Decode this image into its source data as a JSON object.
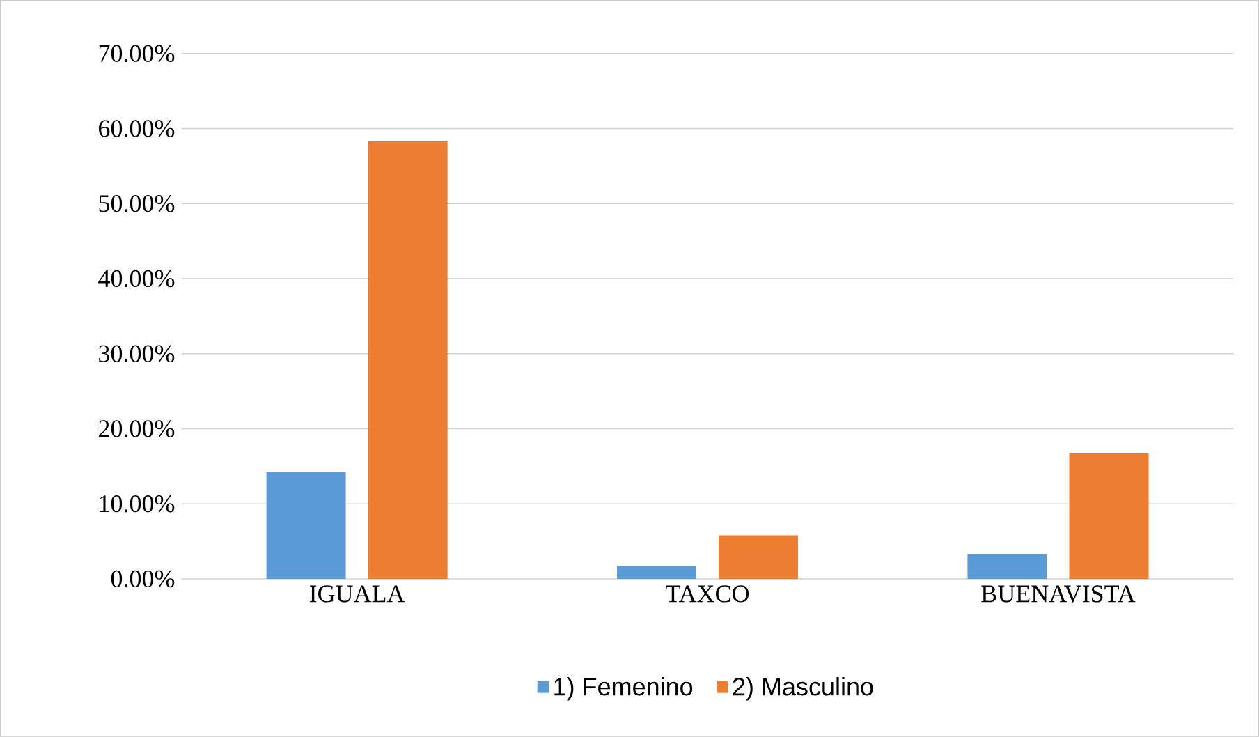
{
  "chart_data": {
    "type": "bar",
    "categories": [
      "IGUALA",
      "TAXCO",
      "BUENAVISTA"
    ],
    "series": [
      {
        "name": "1) Femenino",
        "color": "#5b9bd5",
        "values": [
          14.2,
          1.7,
          3.3
        ]
      },
      {
        "name": "2) Masculino",
        "color": "#ed7d31",
        "values": [
          58.3,
          5.8,
          16.7
        ]
      }
    ],
    "ylim": [
      0,
      70
    ],
    "yticks": [
      {
        "value": 0,
        "label": "0.00%"
      },
      {
        "value": 10,
        "label": "10.00%"
      },
      {
        "value": 20,
        "label": "20.00%"
      },
      {
        "value": 30,
        "label": "30.00%"
      },
      {
        "value": 40,
        "label": "40.00%"
      },
      {
        "value": 50,
        "label": "50.00%"
      },
      {
        "value": 60,
        "label": "60.00%"
      },
      {
        "value": 70,
        "label": "70.00%"
      }
    ],
    "grid": "y",
    "legend": "bottom"
  }
}
